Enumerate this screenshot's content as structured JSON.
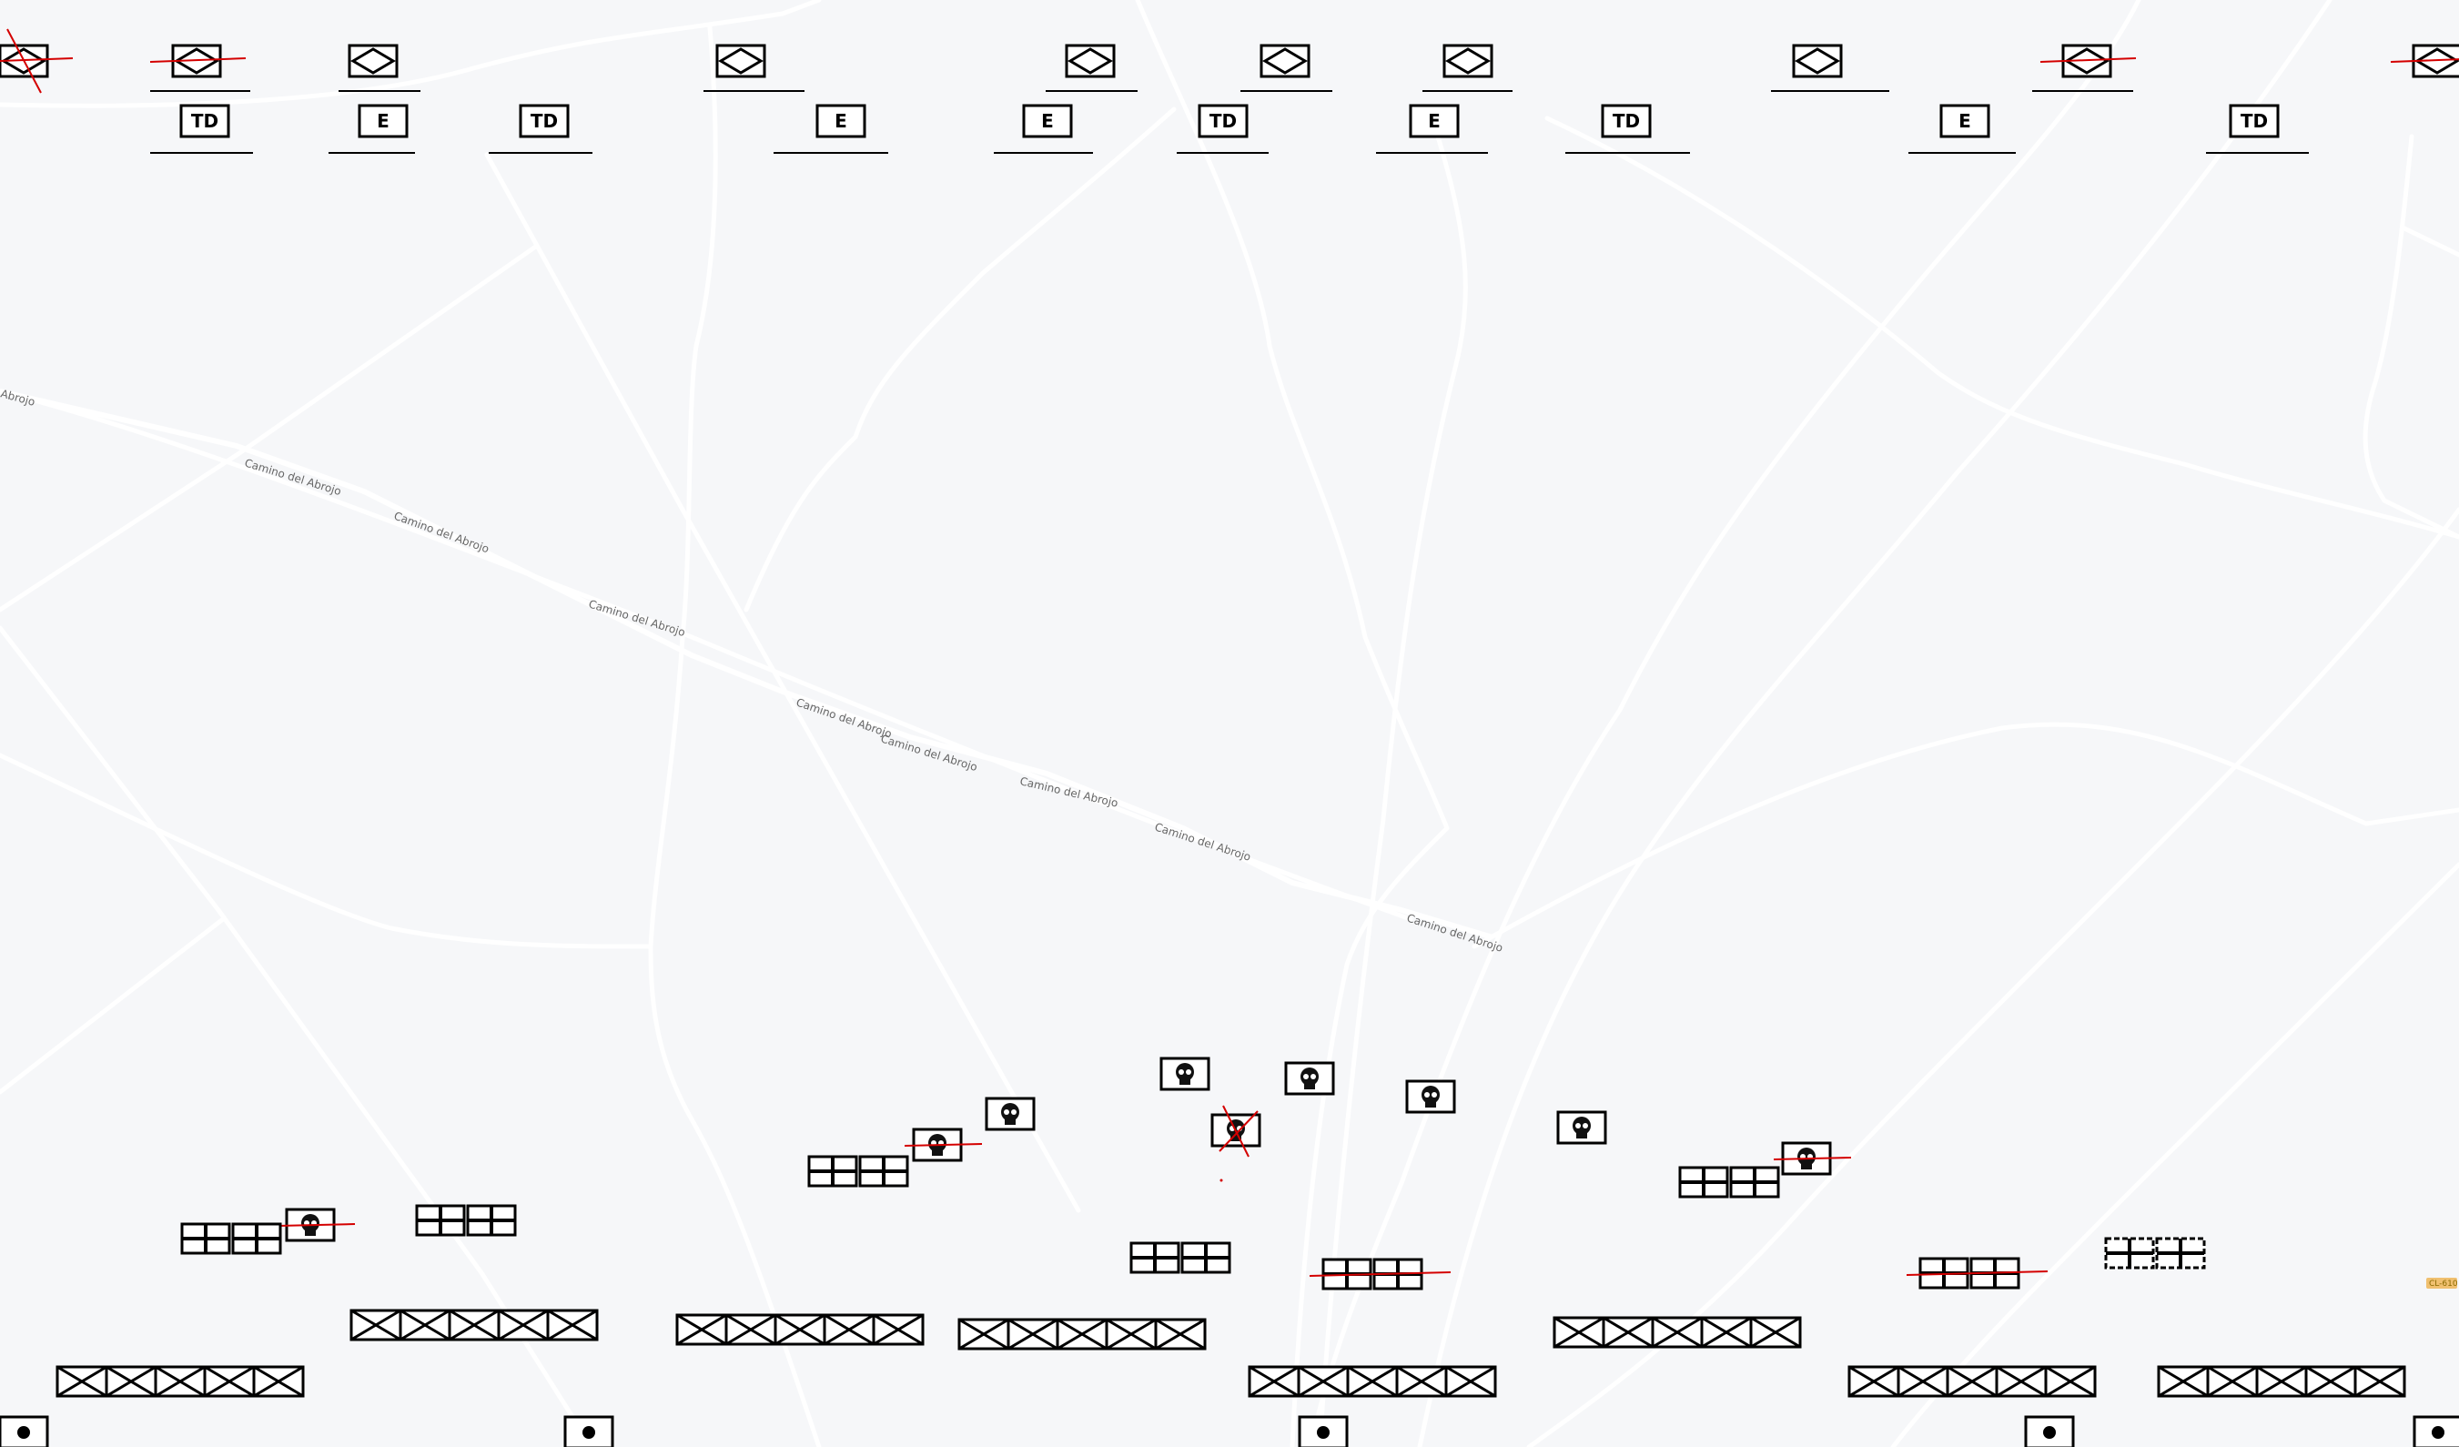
{
  "map": {
    "road_name": "Camino del Abrojo",
    "road_label_count": 9,
    "partial_road_label": "Abrojo",
    "corner_label": "CL-610",
    "colors": {
      "background": "#f6f7f9",
      "road": "#ffffff",
      "unit": "#000000",
      "destroyed_mark": "#d40000",
      "road_label": "#666666"
    }
  },
  "unit_labels": {
    "tank_destroyer": "TD",
    "engineer": "E"
  },
  "units": {
    "top_row_types": [
      "recon",
      "recon",
      "recon",
      "recon",
      "recon",
      "recon",
      "recon",
      "recon",
      "recon",
      "recon"
    ],
    "second_row_labels": [
      "TD",
      "E",
      "TD",
      "E",
      "E",
      "TD",
      "E",
      "TD",
      "E",
      "TD"
    ],
    "destroyed_count": 10,
    "icons": [
      "recon-icon",
      "skull-icon",
      "infantry-icon",
      "medical-icon",
      "artillery-icon"
    ]
  }
}
